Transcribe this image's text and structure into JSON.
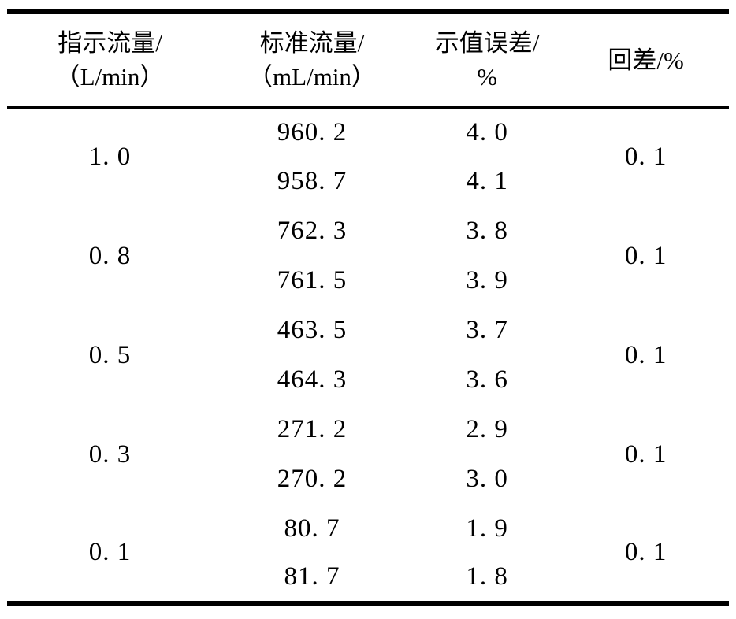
{
  "table": {
    "line_color": "#000000",
    "background_color": "#ffffff",
    "columns": [
      {
        "line1": "指示流量/",
        "line2": "（L/min）"
      },
      {
        "line1": "标准流量/",
        "line2": "（mL/min）"
      },
      {
        "line1": "示值误差/",
        "line2": "%"
      },
      {
        "line1": "回差/%"
      }
    ],
    "groups": [
      {
        "indicated": "1. 0",
        "standard": [
          "960. 2",
          "958. 7"
        ],
        "error": [
          "4. 0",
          "4. 1"
        ],
        "hysteresis": "0. 1"
      },
      {
        "indicated": "0. 8",
        "standard": [
          "762. 3",
          "761. 5"
        ],
        "error": [
          "3. 8",
          "3. 9"
        ],
        "hysteresis": "0. 1"
      },
      {
        "indicated": "0. 5",
        "standard": [
          "463. 5",
          "464. 3"
        ],
        "error": [
          "3. 7",
          "3. 6"
        ],
        "hysteresis": "0. 1"
      },
      {
        "indicated": "0. 3",
        "standard": [
          "271. 2",
          "270. 2"
        ],
        "error": [
          "2. 9",
          "3. 0"
        ],
        "hysteresis": "0. 1"
      },
      {
        "indicated": "0. 1",
        "standard": [
          "80. 7",
          "81. 7"
        ],
        "error": [
          "1. 9",
          "1. 8"
        ],
        "hysteresis": "0. 1"
      }
    ]
  }
}
